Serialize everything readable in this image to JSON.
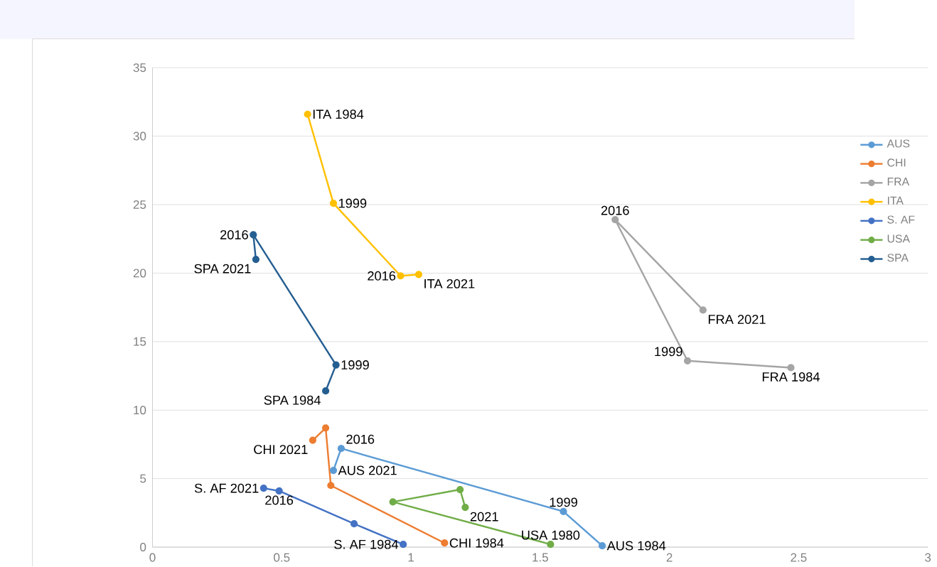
{
  "chart_data": {
    "type": "line",
    "marker": "circle",
    "grid": "y",
    "legend": "right",
    "xlim": [
      0,
      3
    ],
    "ylim": [
      0,
      35
    ],
    "xticks": [
      0,
      0.5,
      1,
      1.5,
      2,
      2.5,
      3
    ],
    "yticks": [
      0,
      5,
      10,
      15,
      20,
      25,
      30,
      35
    ],
    "series": [
      {
        "name": "AUS",
        "color": "#5b9bd5",
        "x": [
          1.74,
          1.59,
          0.73,
          0.7
        ],
        "values": [
          0.1,
          2.6,
          7.2,
          5.6
        ]
      },
      {
        "name": "CHI",
        "color": "#ed7d31",
        "x": [
          1.13,
          0.69,
          0.67,
          0.62
        ],
        "values": [
          0.3,
          4.5,
          8.7,
          7.8
        ]
      },
      {
        "name": "FRA",
        "color": "#a5a5a5",
        "x": [
          2.47,
          2.07,
          1.79,
          2.13
        ],
        "values": [
          13.1,
          13.6,
          23.9,
          17.3
        ]
      },
      {
        "name": "ITA",
        "color": "#ffc000",
        "x": [
          0.6,
          0.7,
          0.96,
          1.03
        ],
        "values": [
          31.6,
          25.1,
          19.8,
          19.9
        ]
      },
      {
        "name": "S. AF",
        "color": "#4472c4",
        "x": [
          0.97,
          0.78,
          0.49,
          0.43
        ],
        "values": [
          0.2,
          1.7,
          4.1,
          4.3
        ]
      },
      {
        "name": "USA",
        "color": "#70ad47",
        "x": [
          1.54,
          0.93,
          1.19,
          1.21
        ],
        "values": [
          0.2,
          3.3,
          4.2,
          2.9
        ]
      },
      {
        "name": "SPA",
        "color": "#255e91",
        "x": [
          0.67,
          0.71,
          0.39,
          0.4
        ],
        "values": [
          11.4,
          13.3,
          22.8,
          21.0
        ]
      }
    ],
    "annotations": [
      {
        "text": "ITA 1984",
        "x": 0.6,
        "y": 31.6
      },
      {
        "text": "1999",
        "x": 0.7,
        "y": 25.1
      },
      {
        "text": "2016",
        "x": 0.96,
        "y": 19.8
      },
      {
        "text": "ITA 2021",
        "x": 1.03,
        "y": 19.9
      },
      {
        "text": "2016",
        "x": 0.39,
        "y": 22.8
      },
      {
        "text": "SPA 2021",
        "x": 0.4,
        "y": 21.0
      },
      {
        "text": "1999",
        "x": 0.71,
        "y": 13.3
      },
      {
        "text": "SPA 1984",
        "x": 0.67,
        "y": 11.4
      },
      {
        "text": "2016",
        "x": 1.79,
        "y": 23.9
      },
      {
        "text": "FRA 2021",
        "x": 2.13,
        "y": 17.3
      },
      {
        "text": "1999",
        "x": 2.07,
        "y": 13.6
      },
      {
        "text": "FRA 1984",
        "x": 2.47,
        "y": 13.1
      },
      {
        "text": "CHI 2021",
        "x": 0.62,
        "y": 7.8
      },
      {
        "text": "2016",
        "x": 0.73,
        "y": 7.2
      },
      {
        "text": "AUS 2021",
        "x": 0.7,
        "y": 5.6
      },
      {
        "text": "S. AF 2021",
        "x": 0.43,
        "y": 4.3
      },
      {
        "text": "2016",
        "x": 0.49,
        "y": 4.1
      },
      {
        "text": "2021",
        "x": 1.21,
        "y": 2.9
      },
      {
        "text": "S. AF 1984",
        "x": 0.97,
        "y": 0.2
      },
      {
        "text": "CHI 1984",
        "x": 1.13,
        "y": 0.3
      },
      {
        "text": "USA 1980",
        "x": 1.54,
        "y": 0.2
      },
      {
        "text": "1999",
        "x": 1.59,
        "y": 2.6
      },
      {
        "text": "AUS 1984",
        "x": 1.74,
        "y": 0.1
      }
    ]
  }
}
